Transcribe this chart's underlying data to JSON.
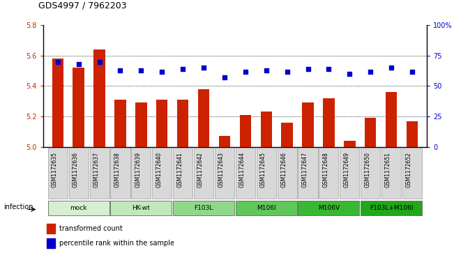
{
  "title": "GDS4997 / 7962203",
  "samples": [
    "GSM1172635",
    "GSM1172636",
    "GSM1172637",
    "GSM1172638",
    "GSM1172639",
    "GSM1172640",
    "GSM1172641",
    "GSM1172642",
    "GSM1172643",
    "GSM1172644",
    "GSM1172645",
    "GSM1172646",
    "GSM1172647",
    "GSM1172648",
    "GSM1172649",
    "GSM1172650",
    "GSM1172651",
    "GSM1172652"
  ],
  "bar_values": [
    5.58,
    5.52,
    5.64,
    5.31,
    5.29,
    5.31,
    5.31,
    5.38,
    5.07,
    5.21,
    5.23,
    5.16,
    5.29,
    5.32,
    5.04,
    5.19,
    5.36,
    5.17
  ],
  "dot_values": [
    70,
    68,
    70,
    63,
    63,
    62,
    64,
    65,
    57,
    62,
    63,
    62,
    64,
    64,
    60,
    62,
    65,
    62
  ],
  "groups": [
    {
      "label": "mock",
      "start": 0,
      "end": 3,
      "color": "#d5efd0"
    },
    {
      "label": "HK-wt",
      "start": 3,
      "end": 6,
      "color": "#c0e8ba"
    },
    {
      "label": "F103L",
      "start": 6,
      "end": 9,
      "color": "#90d888"
    },
    {
      "label": "M106I",
      "start": 9,
      "end": 12,
      "color": "#60c858"
    },
    {
      "label": "M106V",
      "start": 12,
      "end": 15,
      "color": "#38b830"
    },
    {
      "label": "F103L+M106I",
      "start": 15,
      "end": 18,
      "color": "#20a818"
    }
  ],
  "bar_color": "#cc2200",
  "dot_color": "#0000cc",
  "ylim_left": [
    5.0,
    5.8
  ],
  "ylim_right": [
    0,
    100
  ],
  "yticks_left": [
    5.0,
    5.2,
    5.4,
    5.6,
    5.8
  ],
  "yticks_right": [
    0,
    25,
    50,
    75,
    100
  ],
  "ytick_labels_right": [
    "0",
    "25",
    "50",
    "75",
    "100%"
  ],
  "grid_lines": [
    5.2,
    5.4,
    5.6
  ],
  "legend_bar_label": "transformed count",
  "legend_dot_label": "percentile rank within the sample",
  "infection_label": "infection",
  "sample_box_color": "#d8d8d8",
  "sample_box_edge": "#888888"
}
